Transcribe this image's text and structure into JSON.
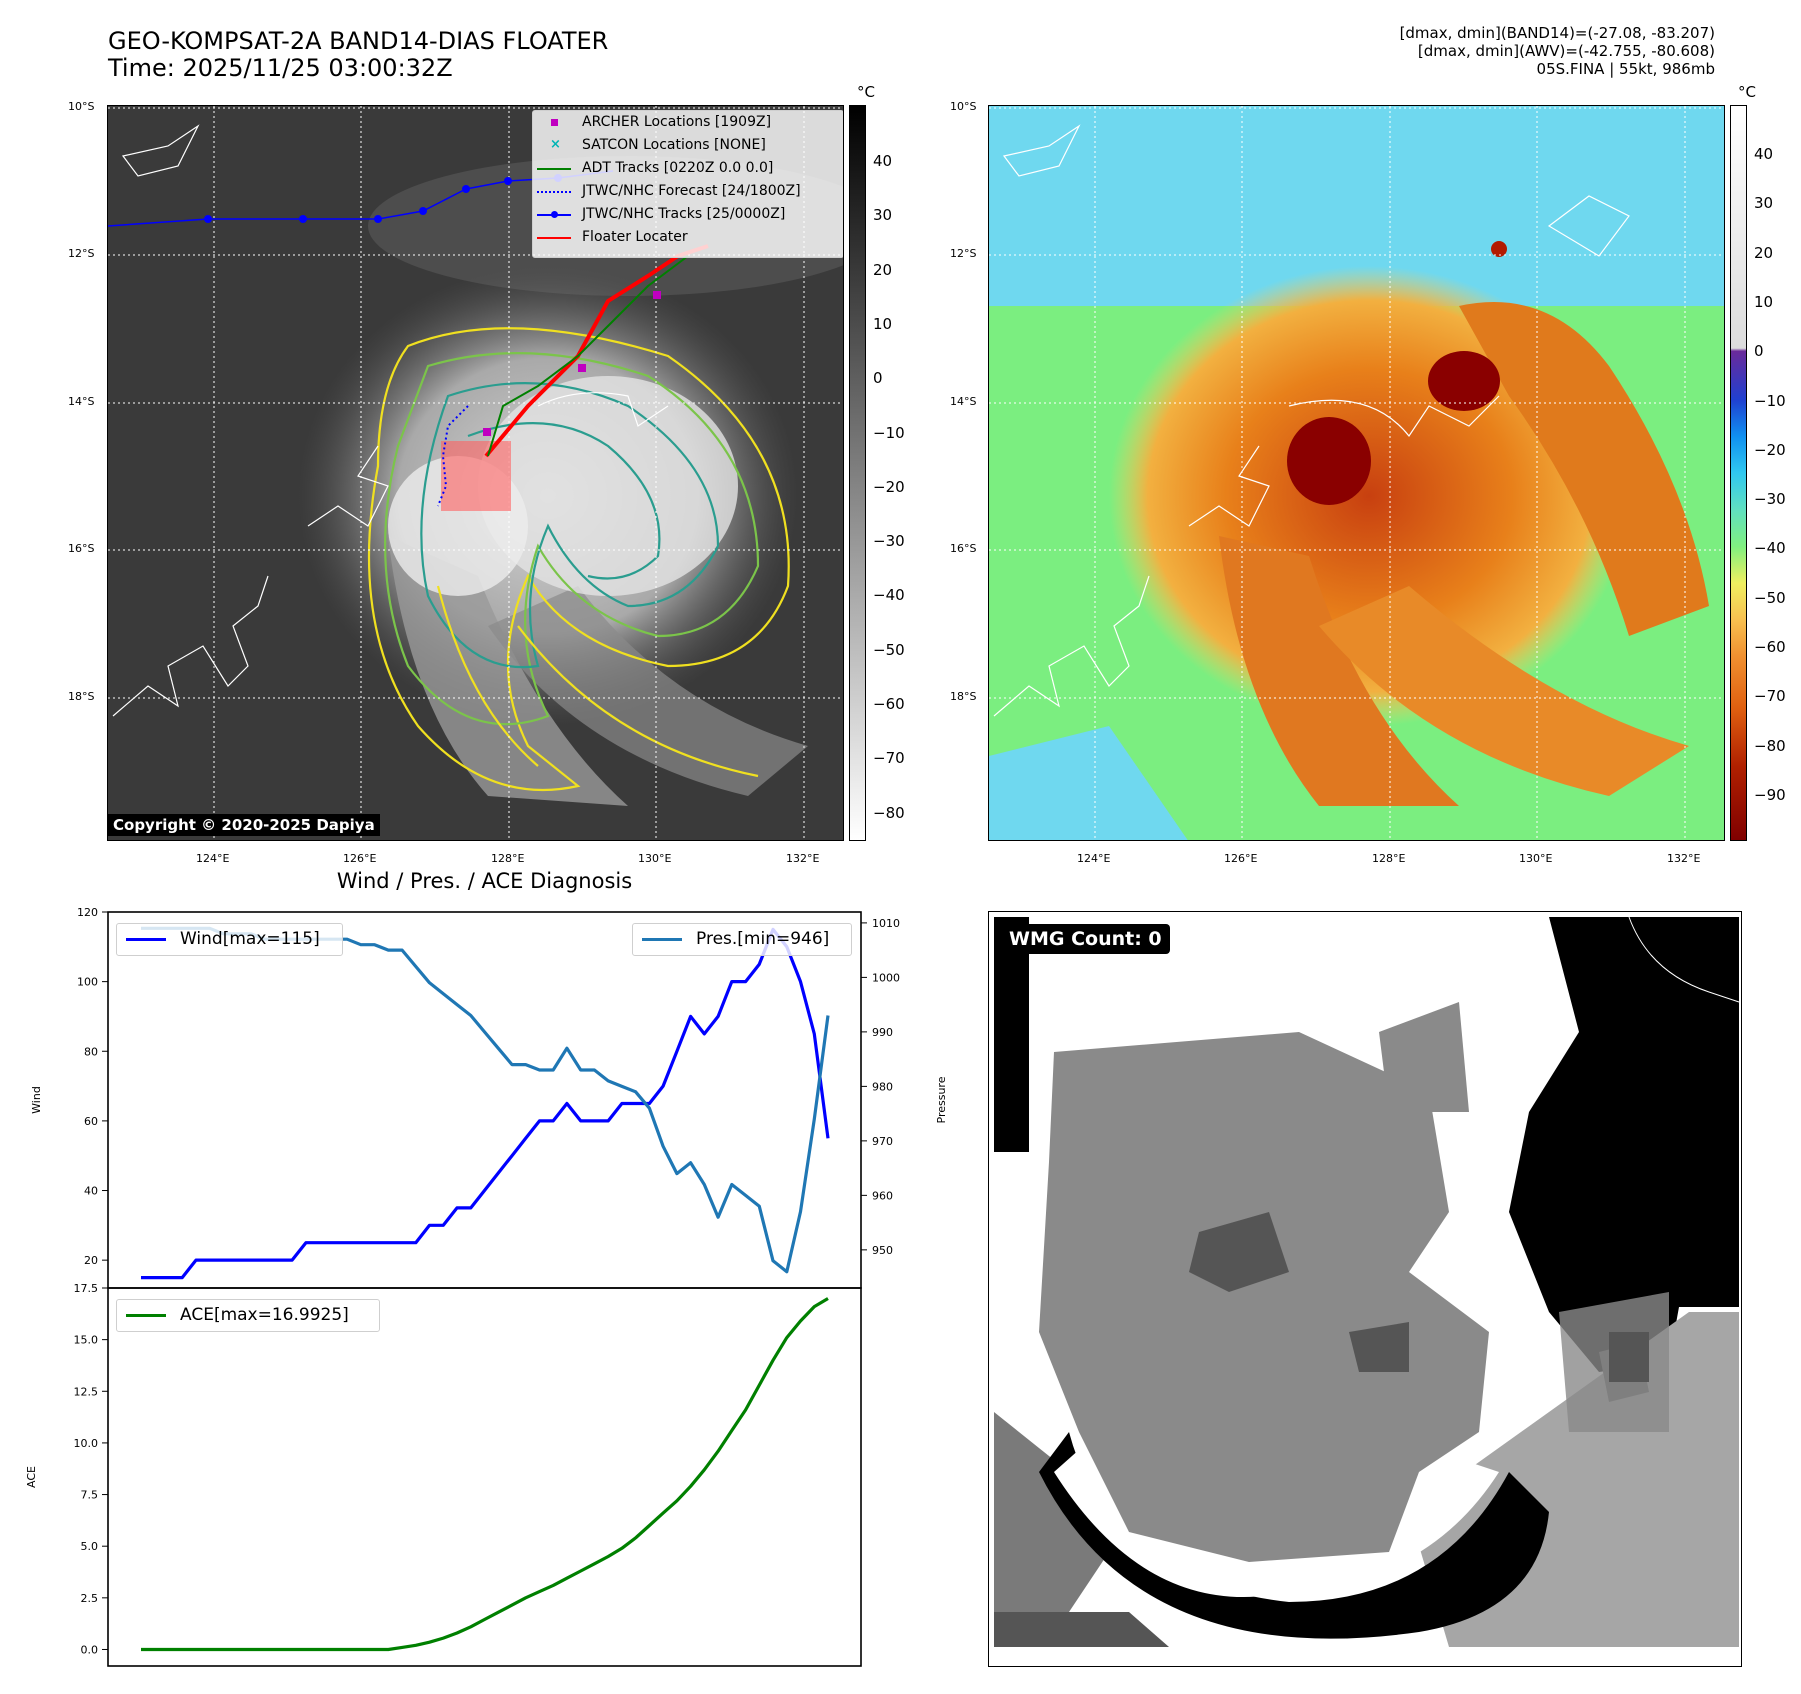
{
  "header": {
    "title_line1": "GEO-KOMPSAT-2A BAND14-DIAS FLOATER",
    "title_line2": "Time: 2025/11/25 03:00:32Z",
    "stats_line1": "[dmax, dmin](BAND14)=(-27.08, -83.207)",
    "stats_line2": "[dmax, dmin](AWV)=(-42.755, -80.608)",
    "stats_line3": "05S.FINA | 55kt, 986mb"
  },
  "map": {
    "lat_labels": [
      "10°S",
      "12°S",
      "14°S",
      "16°S",
      "18°S"
    ],
    "lon_labels": [
      "124°E",
      "126°E",
      "128°E",
      "130°E",
      "132°E"
    ],
    "copyright": "Copyright © 2020-2025 Dapiya",
    "legend": [
      {
        "label": "ARCHER Locations [1909Z]",
        "color": "#c000c0",
        "marker": "square"
      },
      {
        "label": "SATCON Locations [NONE]",
        "color": "#00b5b5",
        "marker": "x"
      },
      {
        "label": "ADT Tracks [0220Z 0.0 0.0]",
        "color": "#008000",
        "marker": "line"
      },
      {
        "label": "JTWC/NHC Forecast [24/1800Z]",
        "color": "#0000ff",
        "marker": "dotted"
      },
      {
        "label": "JTWC/NHC Tracks [25/0000Z]",
        "color": "#0000ff",
        "marker": "line-dot"
      },
      {
        "label": "Floater Locater",
        "color": "#ff0000",
        "marker": "line"
      }
    ]
  },
  "colorbar_gray": {
    "unit": "°C",
    "ticks": [
      "40",
      "30",
      "20",
      "10",
      "0",
      "−10",
      "−20",
      "−30",
      "−40",
      "−50",
      "−60",
      "−70",
      "−80"
    ]
  },
  "colorbar_color": {
    "unit": "°C",
    "ticks": [
      "40",
      "30",
      "20",
      "10",
      "0",
      "−10",
      "−20",
      "−30",
      "−40",
      "−50",
      "−60",
      "−70",
      "−80",
      "−90"
    ]
  },
  "wmg": {
    "label": "WMG Count: 0"
  },
  "diagnosis_title": "Wind / Pres. / ACE Diagnosis",
  "chart_data": [
    {
      "type": "line",
      "title": "",
      "xlabel": "",
      "ylabel": "Wind",
      "ylim": [
        12,
        120
      ],
      "yticks": [
        "120",
        "100",
        "80",
        "60",
        "40",
        "20"
      ],
      "series": [
        {
          "name": "Wind[max=115]",
          "color": "#0000ff",
          "values": [
            15,
            15,
            15,
            15,
            20,
            20,
            20,
            20,
            20,
            20,
            20,
            20,
            25,
            25,
            25,
            25,
            25,
            25,
            25,
            25,
            25,
            30,
            30,
            35,
            35,
            40,
            45,
            50,
            55,
            60,
            60,
            65,
            60,
            60,
            60,
            65,
            65,
            65,
            70,
            80,
            90,
            85,
            90,
            100,
            100,
            105,
            115,
            110,
            100,
            85,
            55
          ]
        }
      ]
    },
    {
      "type": "line",
      "title": "",
      "xlabel": "",
      "ylabel": "Pressure",
      "ylim": [
        943,
        1012
      ],
      "yticks": [
        "1010",
        "1000",
        "990",
        "980",
        "970",
        "960",
        "950"
      ],
      "series": [
        {
          "name": "Pres.[min=946]",
          "color": "#1f77b4",
          "values": [
            1009,
            1009,
            1009,
            1009,
            1009,
            1009,
            1008,
            1008,
            1008,
            1007,
            1007,
            1007,
            1007,
            1007,
            1007,
            1007,
            1006,
            1006,
            1005,
            1005,
            1002,
            999,
            997,
            995,
            993,
            990,
            987,
            984,
            984,
            983,
            983,
            987,
            983,
            983,
            981,
            980,
            979,
            976,
            969,
            964,
            966,
            962,
            956,
            962,
            960,
            958,
            948,
            946,
            957,
            974,
            993
          ]
        }
      ]
    },
    {
      "type": "line",
      "title": "",
      "xlabel": "",
      "ylabel": "ACE",
      "ylim": [
        -0.8,
        17.5
      ],
      "yticks": [
        "17.5",
        "15.0",
        "12.5",
        "10.0",
        "7.5",
        "5.0",
        "2.5",
        "0.0"
      ],
      "series": [
        {
          "name": "ACE[max=16.9925]",
          "color": "#008000",
          "values": [
            0,
            0,
            0,
            0,
            0,
            0,
            0,
            0,
            0,
            0,
            0,
            0,
            0,
            0,
            0,
            0,
            0,
            0,
            0,
            0.1,
            0.2,
            0.35,
            0.55,
            0.8,
            1.1,
            1.45,
            1.8,
            2.15,
            2.5,
            2.8,
            3.1,
            3.45,
            3.8,
            4.15,
            4.5,
            4.9,
            5.4,
            6.0,
            6.6,
            7.2,
            7.9,
            8.7,
            9.6,
            10.6,
            11.6,
            12.8,
            14.0,
            15.1,
            15.9,
            16.6,
            16.99
          ]
        }
      ]
    }
  ]
}
